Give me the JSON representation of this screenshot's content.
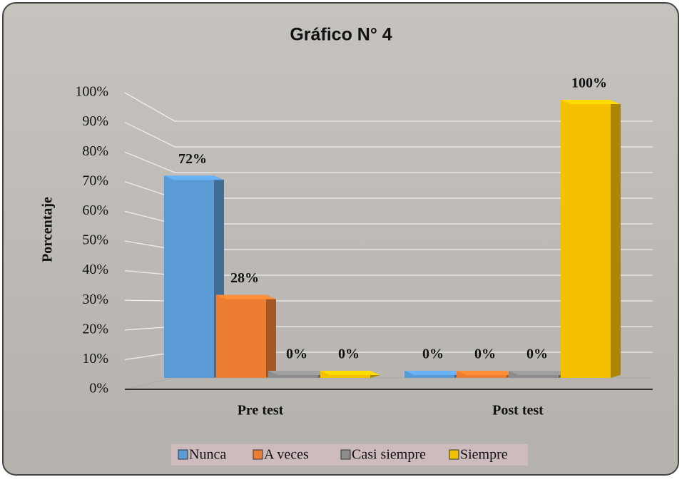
{
  "chart_data": {
    "type": "bar3d",
    "title": "Gráfico N° 4",
    "y_label": "Porcentaje",
    "categories": [
      "Pre test",
      "Post test"
    ],
    "series": [
      {
        "name": "Nunca",
        "color": "#5b9bd5",
        "values": [
          72,
          0
        ],
        "value_labels": [
          "72%",
          "0%"
        ]
      },
      {
        "name": "A veces",
        "color": "#ed7d31",
        "values": [
          28,
          0
        ],
        "value_labels": [
          "28%",
          "0%"
        ]
      },
      {
        "name": "Casi siempre",
        "color": "#8c8c8c",
        "values": [
          0,
          0
        ],
        "value_labels": [
          "0%",
          "0%"
        ]
      },
      {
        "name": "Siempre",
        "color": "#f5c000",
        "values": [
          0,
          100
        ],
        "value_labels": [
          "0%",
          "100%"
        ]
      }
    ],
    "ylim": [
      0,
      100
    ],
    "yticks": [
      {
        "value": 0,
        "label": "0%"
      },
      {
        "value": 10,
        "label": "10%"
      },
      {
        "value": 20,
        "label": "20%"
      },
      {
        "value": 30,
        "label": "30%"
      },
      {
        "value": 40,
        "label": "40%"
      },
      {
        "value": 50,
        "label": "50%"
      },
      {
        "value": 60,
        "label": "60%"
      },
      {
        "value": 70,
        "label": "70%"
      },
      {
        "value": 80,
        "label": "80%"
      },
      {
        "value": 90,
        "label": "90%"
      },
      {
        "value": 100,
        "label": "100%"
      }
    ],
    "grid": true,
    "legend": "bottom"
  }
}
